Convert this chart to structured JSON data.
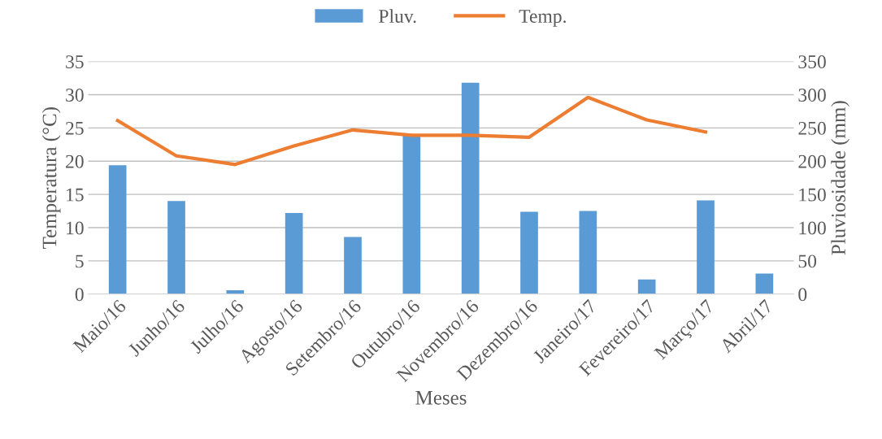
{
  "chart_data": {
    "type": "bar",
    "xlabel": "Meses",
    "ylabel": "Temperatura (°C)",
    "y2label": "Pluviosidade (mm)",
    "categories": [
      "Maio/16",
      "Junho/16",
      "Julho/16",
      "Agosto/16",
      "Setembro/16",
      "Outubro/16",
      "Novembro/16",
      "Dezembro/16",
      "Janeiro/17",
      "Fevereiro/17",
      "Março/17",
      "Abril/17"
    ],
    "series": [
      {
        "name": "Pluv.",
        "axis": "y2",
        "color": "#5b9bd5",
        "values": [
          194,
          140,
          6,
          122,
          86,
          239,
          318,
          124,
          125,
          22,
          141,
          31
        ]
      },
      {
        "name": "Temp.",
        "type": "line",
        "color": "#ed7d31",
        "values": [
          26.1,
          20.8,
          19.5,
          22.3,
          24.7,
          23.9,
          23.9,
          23.6,
          29.6,
          26.2,
          24.4,
          null
        ]
      }
    ],
    "ylim": [
      0,
      35
    ],
    "yticks": [
      0,
      5,
      10,
      15,
      20,
      25,
      30,
      35
    ],
    "y2lim": [
      0,
      350
    ],
    "y2ticks": [
      0,
      50,
      100,
      150,
      200,
      250,
      300,
      350
    ],
    "grid": "y",
    "legend": "top",
    "marker": "none",
    "line_style": "solid"
  }
}
